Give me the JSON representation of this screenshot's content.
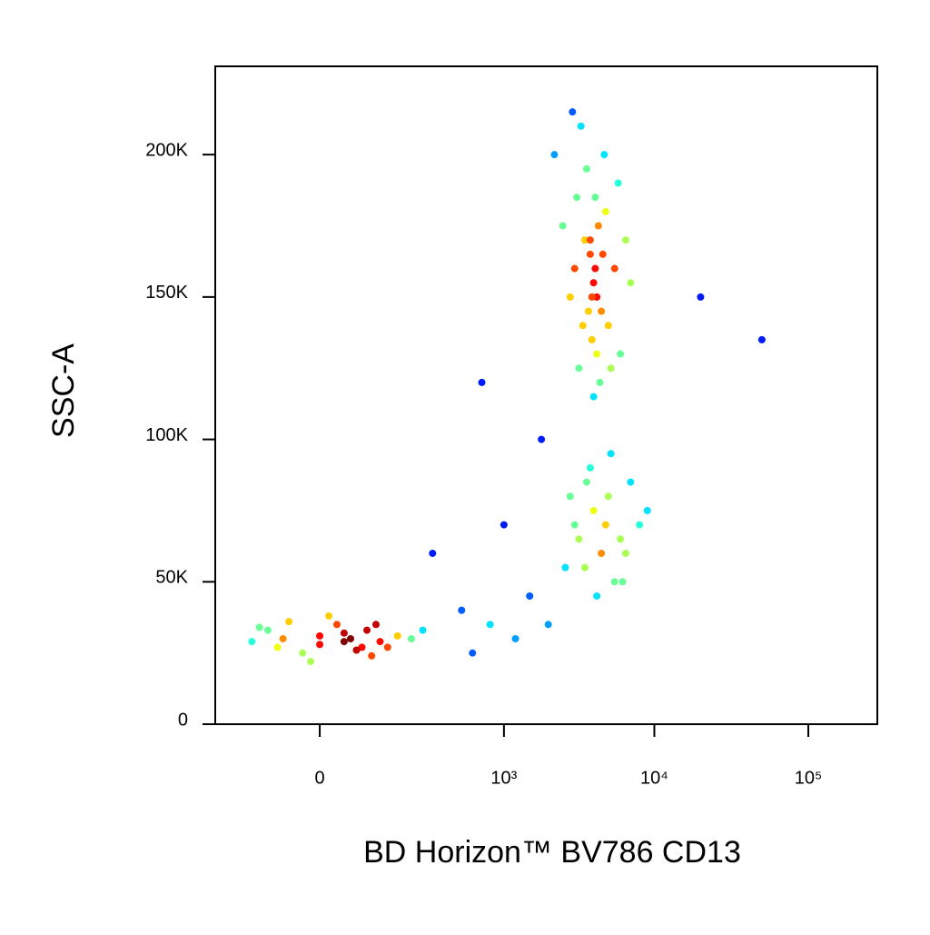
{
  "chart_data": {
    "type": "scatter",
    "x_label": "BD Horizon™ BV786 CD13",
    "y_label": "SSC-A",
    "xscale": "biexponential",
    "density_colors": true,
    "x": [
      -50,
      0,
      30,
      60,
      -80,
      20,
      100,
      -20,
      40,
      80,
      150,
      -120,
      10,
      -40,
      70,
      120,
      200,
      -10,
      50,
      90,
      -60,
      0,
      30,
      250,
      -100,
      4000,
      3800,
      4200,
      4500,
      3500,
      3000,
      5000,
      4300,
      3900,
      4100,
      2800,
      5500,
      6000,
      3600,
      4400,
      2500,
      3200,
      7000,
      4700,
      3300,
      4000,
      3700,
      4800,
      5200,
      2200,
      6500,
      4100,
      3900,
      3400,
      4600,
      2900,
      5800,
      4200,
      3100,
      3800,
      3000,
      4000,
      5000,
      6000,
      3500,
      4500,
      7000,
      2800,
      5500,
      8000,
      3800,
      4200,
      6500,
      3200,
      5200,
      9000,
      2600,
      4800,
      3600,
      6200,
      500,
      800,
      1200,
      1500,
      2000,
      300,
      700,
      50000,
      20000,
      1000,
      600,
      1800
    ],
    "values": [
      30000,
      28000,
      32000,
      27000,
      33000,
      35000,
      29000,
      25000,
      30000,
      24000,
      31000,
      29000,
      38000,
      36000,
      33000,
      27000,
      30000,
      22000,
      26000,
      35000,
      27000,
      31000,
      29000,
      33000,
      34000,
      155000,
      165000,
      150000,
      145000,
      170000,
      160000,
      140000,
      175000,
      135000,
      185000,
      150000,
      160000,
      130000,
      195000,
      120000,
      175000,
      125000,
      155000,
      200000,
      210000,
      115000,
      145000,
      180000,
      125000,
      200000,
      170000,
      160000,
      150000,
      140000,
      165000,
      215000,
      190000,
      130000,
      185000,
      170000,
      70000,
      75000,
      80000,
      65000,
      55000,
      60000,
      85000,
      80000,
      50000,
      70000,
      90000,
      45000,
      60000,
      65000,
      95000,
      75000,
      55000,
      70000,
      85000,
      50000,
      40000,
      35000,
      30000,
      45000,
      35000,
      60000,
      120000,
      135000,
      150000,
      70000,
      25000,
      100000
    ],
    "xlim": [
      -257,
      280000
    ],
    "ylim": [
      0,
      231000
    ],
    "xticks": [
      0,
      {
        "value": 1000,
        "label": "10³"
      },
      {
        "value": 10000,
        "label": "10⁴"
      },
      {
        "value": 100000,
        "label": "10⁵"
      }
    ],
    "yticks": [
      0,
      {
        "value": 50000,
        "label": "50K"
      },
      {
        "value": 100000,
        "label": "100K"
      },
      {
        "value": 150000,
        "label": "150K"
      },
      {
        "value": 200000,
        "label": "200K"
      }
    ]
  }
}
